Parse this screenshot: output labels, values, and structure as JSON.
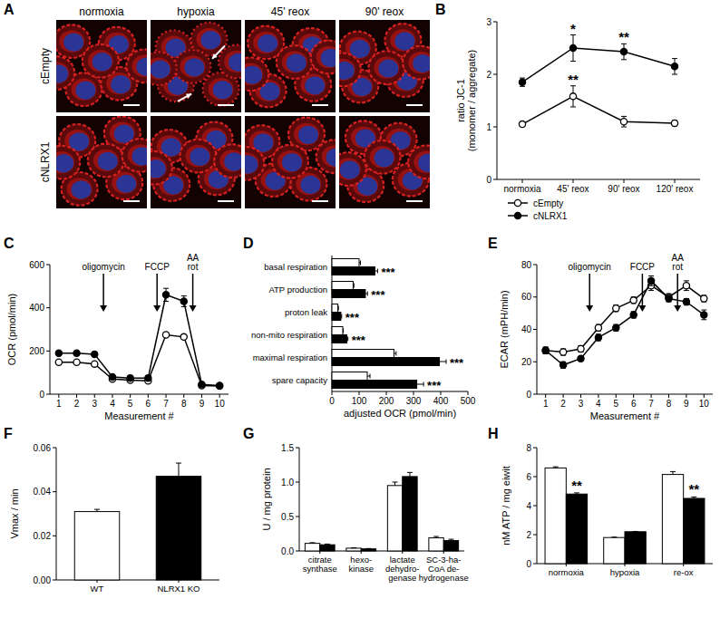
{
  "chart_data": [
    {
      "type": "image",
      "title": "A",
      "columns": [
        "normoxia",
        "hypoxia",
        "45' reox",
        "90' reox"
      ],
      "rows": [
        "cEmpty",
        "cNLRX1"
      ]
    },
    {
      "type": "line",
      "title": "B",
      "categories": [
        "normoxia",
        "45' reox",
        "90' reox",
        "120' reox"
      ],
      "ylabel": "ratio JC-1\n(monomer / aggregate)",
      "ylim": [
        0,
        3
      ],
      "yticks": [
        0,
        1,
        2,
        3
      ],
      "grid": false,
      "legend": "bottom",
      "series": [
        {
          "name": "cEmpty",
          "color": "#000000",
          "marker": "open-circle",
          "values": [
            1.05,
            1.58,
            1.1,
            1.07
          ],
          "errors": [
            0.03,
            0.2,
            0.1,
            0.05
          ]
        },
        {
          "name": "cNLRX1",
          "color": "#000000",
          "marker": "filled-circle",
          "values": [
            1.85,
            2.5,
            2.43,
            2.15
          ],
          "errors": [
            0.08,
            0.25,
            0.15,
            0.15
          ]
        }
      ],
      "annotations": [
        {
          "text": "**",
          "series": 0,
          "index": 1
        },
        {
          "text": "*",
          "series": 1,
          "index": 1
        },
        {
          "text": "**",
          "series": 1,
          "index": 2
        }
      ]
    },
    {
      "type": "line",
      "title": "C",
      "xlabel": "Measurement #",
      "ylabel": "OCR (pmol/min)",
      "x": [
        1,
        2,
        3,
        4,
        5,
        6,
        7,
        8,
        9,
        10
      ],
      "xlim": [
        0.5,
        10.5
      ],
      "xticks": [
        1,
        2,
        3,
        4,
        5,
        6,
        7,
        8,
        9,
        10
      ],
      "ylim": [
        0,
        600
      ],
      "yticks": [
        0,
        200,
        400,
        600
      ],
      "grid": false,
      "series": [
        {
          "color": "#000000",
          "marker": "open-circle",
          "values": [
            148,
            148,
            140,
            70,
            65,
            62,
            275,
            265,
            40,
            38
          ],
          "errors": [
            5,
            5,
            5,
            4,
            4,
            4,
            10,
            8,
            3,
            3
          ]
        },
        {
          "color": "#000000",
          "marker": "filled-circle",
          "values": [
            190,
            190,
            185,
            80,
            75,
            75,
            460,
            430,
            45,
            40
          ],
          "errors": [
            8,
            8,
            8,
            5,
            5,
            5,
            30,
            25,
            3,
            3
          ]
        }
      ],
      "annotations": [
        {
          "text": "oligomycin",
          "x": 3.5
        },
        {
          "text": "FCCP",
          "x": 6.5
        },
        {
          "text": "AA\nrot",
          "x": 8.5
        }
      ]
    },
    {
      "type": "bar",
      "title": "D",
      "orientation": "horizontal",
      "xlabel": "adjusted OCR (pmol/min)",
      "categories": [
        "basal respiration",
        "ATP production",
        "proton leak",
        "non-mito respiration",
        "maximal respiration",
        "spare capacity"
      ],
      "xlim": [
        0,
        500
      ],
      "xticks": [
        0,
        100,
        200,
        300,
        400,
        500
      ],
      "grid": false,
      "series": [
        {
          "color": "#ffffff",
          "values": [
            100,
            78,
            22,
            40,
            228,
            130
          ],
          "errors": [
            5,
            3,
            2,
            2,
            8,
            10
          ]
        },
        {
          "color": "#000000",
          "values": [
            158,
            123,
            33,
            55,
            395,
            312
          ],
          "errors": [
            10,
            8,
            3,
            4,
            25,
            25
          ]
        }
      ],
      "annotations": [
        {
          "text": "***",
          "series": 1,
          "index": 0
        },
        {
          "text": "***",
          "series": 1,
          "index": 1
        },
        {
          "text": "***",
          "series": 1,
          "index": 2
        },
        {
          "text": "***",
          "series": 1,
          "index": 3
        },
        {
          "text": "***",
          "series": 1,
          "index": 4
        },
        {
          "text": "***",
          "series": 1,
          "index": 5
        }
      ]
    },
    {
      "type": "line",
      "title": "E",
      "xlabel": "Measurement #",
      "ylabel": "ECAR (mPH/min)",
      "x": [
        1,
        2,
        3,
        4,
        5,
        6,
        7,
        8,
        9,
        10
      ],
      "xlim": [
        0.5,
        10.5
      ],
      "xticks": [
        1,
        2,
        3,
        4,
        5,
        6,
        7,
        8,
        9,
        10
      ],
      "ylim": [
        0,
        80
      ],
      "yticks": [
        0,
        20,
        40,
        60,
        80
      ],
      "grid": false,
      "series": [
        {
          "color": "#000000",
          "marker": "open-circle",
          "values": [
            27,
            26,
            28,
            41,
            53,
            58,
            67,
            60,
            67,
            59
          ],
          "errors": [
            2,
            2,
            2,
            2,
            2,
            2,
            3,
            2,
            3,
            2
          ]
        },
        {
          "color": "#000000",
          "marker": "filled-circle",
          "values": [
            27,
            18,
            22,
            35,
            41,
            49,
            70,
            59,
            57,
            49
          ],
          "errors": [
            2,
            2,
            1,
            2,
            2,
            2,
            3,
            2,
            2,
            3
          ]
        }
      ],
      "annotations": [
        {
          "text": "oligomycin",
          "x": 3.5
        },
        {
          "text": "FCCP",
          "x": 6.5
        },
        {
          "text": "AA\nrot",
          "x": 8.5
        }
      ]
    },
    {
      "type": "bar",
      "title": "F",
      "ylabel": "Vmax / min",
      "categories": [
        "WT",
        "NLRX1 KO"
      ],
      "ylim": [
        0,
        0.06
      ],
      "yticks": [
        {
          "value": 0,
          "label": "0.00"
        },
        {
          "value": 0.02,
          "label": "0.02"
        },
        {
          "value": 0.04,
          "label": "0.04"
        },
        {
          "value": 0.06,
          "label": "0.06"
        }
      ],
      "grid": false,
      "series": [
        {
          "colors": [
            "#ffffff",
            "#000000"
          ],
          "values": [
            0.031,
            0.047
          ],
          "errors": [
            0.001,
            0.006
          ]
        }
      ]
    },
    {
      "type": "bar",
      "title": "G",
      "ylabel": "U / mg protein",
      "categories": [
        "citrate\nsynthase",
        "hexo-\nkinase",
        "lactate\ndehydro-\ngenase",
        "SC-3-ha-\nCoA de-\nhydrogenase"
      ],
      "ylim": [
        0,
        1.5
      ],
      "yticks": [
        {
          "value": 0,
          "label": "0.0"
        },
        {
          "value": 0.5,
          "label": "0.5"
        },
        {
          "value": 1,
          "label": "1.0"
        },
        {
          "value": 1.5,
          "label": "1.5"
        }
      ],
      "grid": false,
      "series": [
        {
          "color": "#ffffff",
          "values": [
            0.11,
            0.04,
            0.95,
            0.19
          ],
          "errors": [
            0.01,
            0.005,
            0.05,
            0.02
          ]
        },
        {
          "color": "#000000",
          "values": [
            0.09,
            0.03,
            1.08,
            0.15
          ],
          "errors": [
            0.01,
            0.005,
            0.06,
            0.02
          ]
        }
      ]
    },
    {
      "type": "bar",
      "title": "H",
      "ylabel": "nM ATP / mg eiwit",
      "categories": [
        "normoxia",
        "hypoxia",
        "re-ox"
      ],
      "ylim": [
        0,
        8
      ],
      "yticks": [
        0,
        2,
        4,
        6,
        8
      ],
      "grid": false,
      "series": [
        {
          "color": "#ffffff",
          "values": [
            6.6,
            1.8,
            6.15
          ],
          "errors": [
            0.08,
            0.03,
            0.2
          ]
        },
        {
          "color": "#000000",
          "values": [
            4.8,
            2.2,
            4.5
          ],
          "errors": [
            0.08,
            0.02,
            0.1
          ]
        }
      ],
      "annotations": [
        {
          "text": "**",
          "series": 1,
          "index": 0
        },
        {
          "text": "**",
          "series": 1,
          "index": 2
        }
      ]
    }
  ]
}
